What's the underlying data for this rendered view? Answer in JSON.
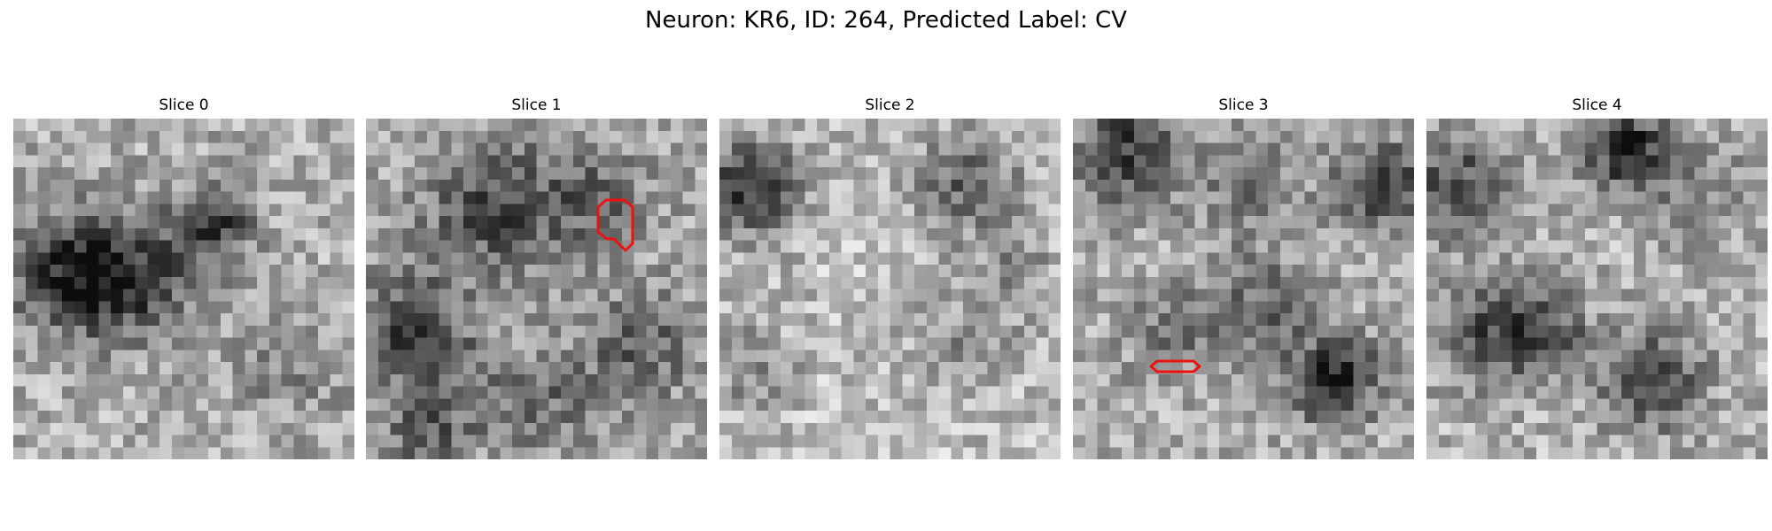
{
  "figure": {
    "title": "Neuron: KR6, ID: 264, Predicted Label: CV"
  },
  "panels": [
    {
      "title": "Slice 0",
      "has_roi": false
    },
    {
      "title": "Slice 1",
      "has_roi": true
    },
    {
      "title": "Slice 2",
      "has_roi": false
    },
    {
      "title": "Slice 3",
      "has_roi": true
    },
    {
      "title": "Slice 4",
      "has_roi": false
    }
  ],
  "colors": {
    "roi_outline": "#ee1111",
    "background": "#ffffff"
  },
  "image_style": "grayscale pixel grid, 28x28 per slice"
}
